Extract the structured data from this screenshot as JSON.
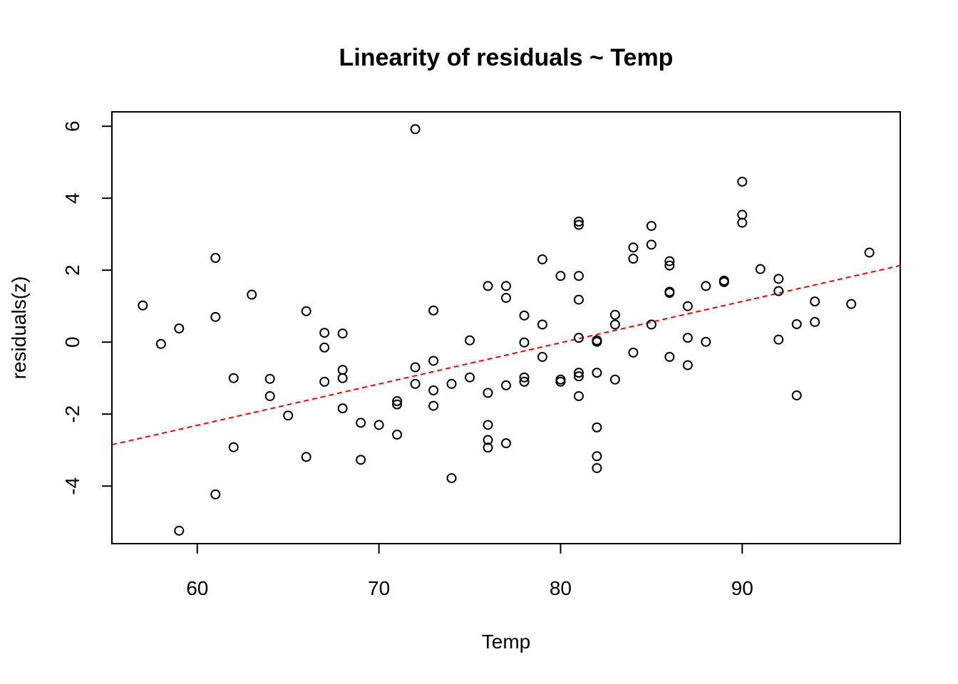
{
  "chart_data": {
    "type": "scatter",
    "title": "Linearity of residuals ~ Temp",
    "xlabel": "Temp",
    "ylabel": "residuals(z)",
    "xlim": [
      55.3,
      98.7
    ],
    "ylim": [
      -5.6,
      6.4
    ],
    "xticks": [
      60,
      70,
      80,
      90
    ],
    "yticks": [
      -4,
      -2,
      0,
      2,
      4,
      6
    ],
    "grid": false,
    "colors": {
      "points": "#000000",
      "trend": "#ff0000"
    },
    "trend_line": {
      "style": "dashed",
      "x": [
        55.3,
        98.7
      ],
      "y": [
        -2.85,
        2.13
      ]
    },
    "points": [
      {
        "x": 57,
        "y": 1.02
      },
      {
        "x": 58,
        "y": -0.05
      },
      {
        "x": 59,
        "y": 0.38
      },
      {
        "x": 59,
        "y": -5.24
      },
      {
        "x": 61,
        "y": 2.34
      },
      {
        "x": 61,
        "y": 0.7
      },
      {
        "x": 61,
        "y": -4.23
      },
      {
        "x": 62,
        "y": -1.0
      },
      {
        "x": 62,
        "y": -2.92
      },
      {
        "x": 63,
        "y": 1.32
      },
      {
        "x": 64,
        "y": -1.02
      },
      {
        "x": 64,
        "y": -1.5
      },
      {
        "x": 65,
        "y": -2.04
      },
      {
        "x": 66,
        "y": 0.86
      },
      {
        "x": 66,
        "y": -3.19
      },
      {
        "x": 67,
        "y": 0.26
      },
      {
        "x": 67,
        "y": -0.15
      },
      {
        "x": 67,
        "y": -1.1
      },
      {
        "x": 68,
        "y": 0.24
      },
      {
        "x": 68,
        "y": -0.77
      },
      {
        "x": 68,
        "y": -1.0
      },
      {
        "x": 68,
        "y": -1.84
      },
      {
        "x": 69,
        "y": -2.24
      },
      {
        "x": 69,
        "y": -3.27
      },
      {
        "x": 70,
        "y": -2.3
      },
      {
        "x": 71,
        "y": -1.64
      },
      {
        "x": 71,
        "y": -1.73
      },
      {
        "x": 71,
        "y": -2.57
      },
      {
        "x": 72,
        "y": 5.92
      },
      {
        "x": 72,
        "y": -0.7
      },
      {
        "x": 72,
        "y": -1.16
      },
      {
        "x": 73,
        "y": 0.88
      },
      {
        "x": 73,
        "y": -0.52
      },
      {
        "x": 73,
        "y": -1.34
      },
      {
        "x": 73,
        "y": -1.77
      },
      {
        "x": 74,
        "y": -1.16
      },
      {
        "x": 74,
        "y": -3.78
      },
      {
        "x": 75,
        "y": 0.05
      },
      {
        "x": 75,
        "y": -0.98
      },
      {
        "x": 76,
        "y": 1.56
      },
      {
        "x": 76,
        "y": -1.41
      },
      {
        "x": 76,
        "y": -2.3
      },
      {
        "x": 76,
        "y": -2.72
      },
      {
        "x": 76,
        "y": -2.93
      },
      {
        "x": 77,
        "y": 1.56
      },
      {
        "x": 77,
        "y": 1.23
      },
      {
        "x": 77,
        "y": -1.2
      },
      {
        "x": 77,
        "y": -2.81
      },
      {
        "x": 78,
        "y": 0.74
      },
      {
        "x": 78,
        "y": -0.01
      },
      {
        "x": 78,
        "y": -0.98
      },
      {
        "x": 78,
        "y": -1.1
      },
      {
        "x": 79,
        "y": 2.3
      },
      {
        "x": 79,
        "y": 0.49
      },
      {
        "x": 79,
        "y": -0.41
      },
      {
        "x": 80,
        "y": 1.84
      },
      {
        "x": 80,
        "y": -1.04
      },
      {
        "x": 80,
        "y": -1.1
      },
      {
        "x": 81,
        "y": 3.35
      },
      {
        "x": 81,
        "y": 3.26
      },
      {
        "x": 81,
        "y": 1.84
      },
      {
        "x": 81,
        "y": 1.18
      },
      {
        "x": 81,
        "y": 0.12
      },
      {
        "x": 81,
        "y": -0.85
      },
      {
        "x": 81,
        "y": -0.95
      },
      {
        "x": 81,
        "y": -1.5
      },
      {
        "x": 82,
        "y": 0.05
      },
      {
        "x": 82,
        "y": 0.01
      },
      {
        "x": 82,
        "y": -0.85
      },
      {
        "x": 82,
        "y": -2.37
      },
      {
        "x": 82,
        "y": -3.17
      },
      {
        "x": 82,
        "y": -3.5
      },
      {
        "x": 83,
        "y": 0.76
      },
      {
        "x": 83,
        "y": 0.49
      },
      {
        "x": 83,
        "y": -1.04
      },
      {
        "x": 84,
        "y": 2.63
      },
      {
        "x": 84,
        "y": 2.32
      },
      {
        "x": 84,
        "y": -0.29
      },
      {
        "x": 85,
        "y": 3.23
      },
      {
        "x": 85,
        "y": 2.71
      },
      {
        "x": 85,
        "y": 0.49
      },
      {
        "x": 86,
        "y": 2.25
      },
      {
        "x": 86,
        "y": 2.13
      },
      {
        "x": 86,
        "y": 1.4
      },
      {
        "x": 86,
        "y": 1.37
      },
      {
        "x": 86,
        "y": -0.41
      },
      {
        "x": 87,
        "y": 1.0
      },
      {
        "x": 87,
        "y": 0.12
      },
      {
        "x": 87,
        "y": -0.64
      },
      {
        "x": 88,
        "y": 1.56
      },
      {
        "x": 88,
        "y": 0.01
      },
      {
        "x": 89,
        "y": 1.71
      },
      {
        "x": 89,
        "y": 1.67
      },
      {
        "x": 90,
        "y": 4.46
      },
      {
        "x": 90,
        "y": 3.54
      },
      {
        "x": 90,
        "y": 3.32
      },
      {
        "x": 91,
        "y": 2.03
      },
      {
        "x": 92,
        "y": 1.76
      },
      {
        "x": 92,
        "y": 1.42
      },
      {
        "x": 92,
        "y": 0.07
      },
      {
        "x": 93,
        "y": 0.5
      },
      {
        "x": 93,
        "y": -1.48
      },
      {
        "x": 94,
        "y": 1.13
      },
      {
        "x": 94,
        "y": 0.56
      },
      {
        "x": 96,
        "y": 1.06
      },
      {
        "x": 97,
        "y": 2.49
      }
    ]
  }
}
